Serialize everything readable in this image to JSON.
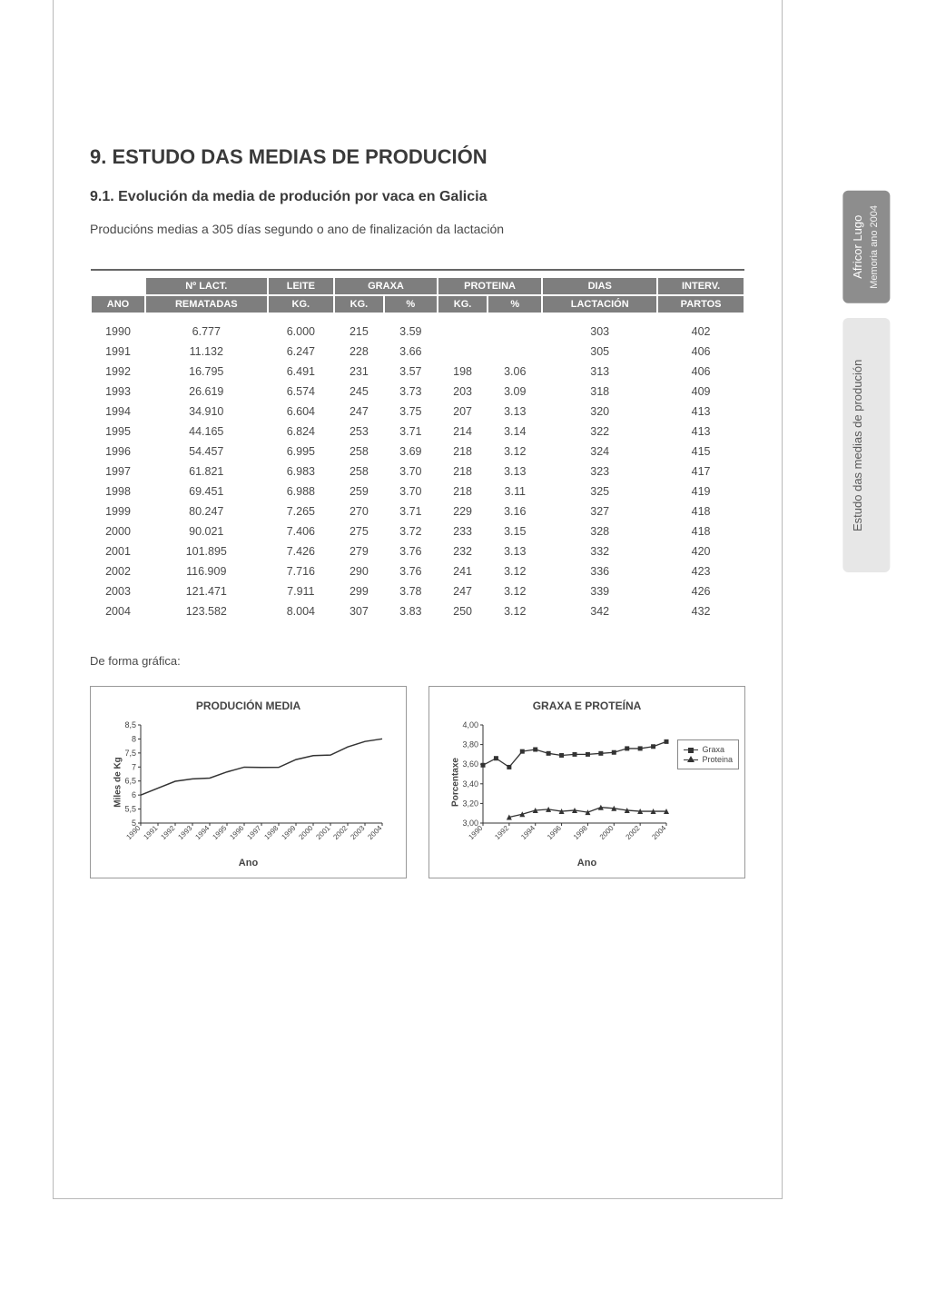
{
  "side": {
    "tab1": {
      "line1": "Africor Lugo",
      "line2": "Memoria ano 2004"
    },
    "tab2": {
      "line1": "Estudo das medias de produción",
      "line2": ""
    }
  },
  "headings": {
    "title": "9. ESTUDO DAS MEDIAS DE PRODUCIÓN",
    "subtitle": "9.1. Evolución da media de produción por vaca en Galicia",
    "intro": "Producións medias a 305 días segundo o ano de finalización da lactación",
    "graph_note": "De forma gráfica:"
  },
  "table": {
    "headers": {
      "ano": "ANO",
      "lact_top": "Nº LACT.",
      "lact_sub": "REMATADAS",
      "leite_top": "LEITE",
      "leite_sub": "KG.",
      "graxa_top": "GRAXA",
      "graxa_kg": "KG.",
      "graxa_pct": "%",
      "prot_top": "PROTEINA",
      "prot_kg": "KG.",
      "prot_pct": "%",
      "dias_top": "DIAS",
      "dias_sub": "LACTACIÓN",
      "interv_top": "INTERV.",
      "interv_sub": "PARTOS"
    },
    "rows": [
      {
        "ano": "1990",
        "lact": "6.777",
        "leite": "6.000",
        "gkg": "215",
        "gpct": "3.59",
        "pkg": "",
        "ppct": "",
        "dias": "303",
        "interv": "402"
      },
      {
        "ano": "1991",
        "lact": "11.132",
        "leite": "6.247",
        "gkg": "228",
        "gpct": "3.66",
        "pkg": "",
        "ppct": "",
        "dias": "305",
        "interv": "406"
      },
      {
        "ano": "1992",
        "lact": "16.795",
        "leite": "6.491",
        "gkg": "231",
        "gpct": "3.57",
        "pkg": "198",
        "ppct": "3.06",
        "dias": "313",
        "interv": "406"
      },
      {
        "ano": "1993",
        "lact": "26.619",
        "leite": "6.574",
        "gkg": "245",
        "gpct": "3.73",
        "pkg": "203",
        "ppct": "3.09",
        "dias": "318",
        "interv": "409"
      },
      {
        "ano": "1994",
        "lact": "34.910",
        "leite": "6.604",
        "gkg": "247",
        "gpct": "3.75",
        "pkg": "207",
        "ppct": "3.13",
        "dias": "320",
        "interv": "413"
      },
      {
        "ano": "1995",
        "lact": "44.165",
        "leite": "6.824",
        "gkg": "253",
        "gpct": "3.71",
        "pkg": "214",
        "ppct": "3.14",
        "dias": "322",
        "interv": "413"
      },
      {
        "ano": "1996",
        "lact": "54.457",
        "leite": "6.995",
        "gkg": "258",
        "gpct": "3.69",
        "pkg": "218",
        "ppct": "3.12",
        "dias": "324",
        "interv": "415"
      },
      {
        "ano": "1997",
        "lact": "61.821",
        "leite": "6.983",
        "gkg": "258",
        "gpct": "3.70",
        "pkg": "218",
        "ppct": "3.13",
        "dias": "323",
        "interv": "417"
      },
      {
        "ano": "1998",
        "lact": "69.451",
        "leite": "6.988",
        "gkg": "259",
        "gpct": "3.70",
        "pkg": "218",
        "ppct": "3.11",
        "dias": "325",
        "interv": "419"
      },
      {
        "ano": "1999",
        "lact": "80.247",
        "leite": "7.265",
        "gkg": "270",
        "gpct": "3.71",
        "pkg": "229",
        "ppct": "3.16",
        "dias": "327",
        "interv": "418"
      },
      {
        "ano": "2000",
        "lact": "90.021",
        "leite": "7.406",
        "gkg": "275",
        "gpct": "3.72",
        "pkg": "233",
        "ppct": "3.15",
        "dias": "328",
        "interv": "418"
      },
      {
        "ano": "2001",
        "lact": "101.895",
        "leite": "7.426",
        "gkg": "279",
        "gpct": "3.76",
        "pkg": "232",
        "ppct": "3.13",
        "dias": "332",
        "interv": "420"
      },
      {
        "ano": "2002",
        "lact": "116.909",
        "leite": "7.716",
        "gkg": "290",
        "gpct": "3.76",
        "pkg": "241",
        "ppct": "3.12",
        "dias": "336",
        "interv": "423"
      },
      {
        "ano": "2003",
        "lact": "121.471",
        "leite": "7.911",
        "gkg": "299",
        "gpct": "3.78",
        "pkg": "247",
        "ppct": "3.12",
        "dias": "339",
        "interv": "426"
      },
      {
        "ano": "2004",
        "lact": "123.582",
        "leite": "8.004",
        "gkg": "307",
        "gpct": "3.83",
        "pkg": "250",
        "ppct": "3.12",
        "dias": "342",
        "interv": "432"
      }
    ]
  },
  "chart1": {
    "type": "line",
    "title": "PRODUCIÓN MEDIA",
    "ylabel": "Miles de Kg",
    "xlabel": "Ano",
    "years": [
      "1990",
      "1991",
      "1992",
      "1993",
      "1994",
      "1995",
      "1996",
      "1997",
      "1998",
      "1999",
      "2000",
      "2001",
      "2002",
      "2003",
      "2004"
    ],
    "values": [
      6.0,
      6.247,
      6.491,
      6.574,
      6.604,
      6.824,
      6.995,
      6.983,
      6.988,
      7.265,
      7.406,
      7.426,
      7.716,
      7.911,
      8.004
    ],
    "ylim": [
      5,
      8.5
    ],
    "yticks": [
      5,
      5.5,
      6,
      6.5,
      7,
      7.5,
      8,
      8.5
    ],
    "ytick_labels": [
      "5",
      "5,5",
      "6",
      "6,5",
      "7",
      "7,5",
      "8",
      "8,5"
    ],
    "line_color": "#333333",
    "background_color": "#ffffff",
    "axis_color": "#333333",
    "font_size": 9
  },
  "chart2": {
    "type": "line",
    "title": "GRAXA E PROTEÍNA",
    "ylabel": "Porcentaxe",
    "xlabel": "Ano",
    "years": [
      "1990",
      "1992",
      "1994",
      "1996",
      "1998",
      "2000",
      "2002",
      "2004"
    ],
    "all_years": [
      "1990",
      "1991",
      "1992",
      "1993",
      "1994",
      "1995",
      "1996",
      "1997",
      "1998",
      "1999",
      "2000",
      "2001",
      "2002",
      "2003",
      "2004"
    ],
    "graxa": [
      3.59,
      3.66,
      3.57,
      3.73,
      3.75,
      3.71,
      3.69,
      3.7,
      3.7,
      3.71,
      3.72,
      3.76,
      3.76,
      3.78,
      3.83
    ],
    "proteina": [
      null,
      null,
      3.06,
      3.09,
      3.13,
      3.14,
      3.12,
      3.13,
      3.11,
      3.16,
      3.15,
      3.13,
      3.12,
      3.12,
      3.12
    ],
    "ylim": [
      3.0,
      4.0
    ],
    "yticks": [
      3.0,
      3.2,
      3.4,
      3.6,
      3.8,
      4.0
    ],
    "ytick_labels": [
      "3,00",
      "3,20",
      "3,40",
      "3,60",
      "3,80",
      "4,00"
    ],
    "legend": {
      "graxa": "Graxa",
      "proteina": "Proteina"
    },
    "line_color": "#333333",
    "background_color": "#ffffff",
    "axis_color": "#333333",
    "font_size": 9
  }
}
